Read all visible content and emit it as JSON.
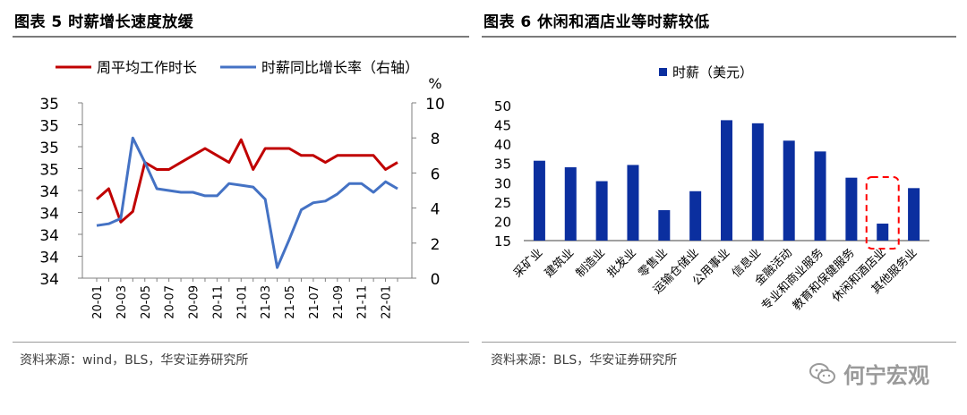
{
  "left_panel": {
    "title": "图表 5 时薪增长速度放缓",
    "source": "资料来源：wind，BLS，华安证券研究所"
  },
  "right_panel": {
    "title": "图表 6  休闲和酒店业等时薪较低",
    "source": "资料来源：BLS，华安证券研究所"
  },
  "watermark": {
    "text": "何宁宏观",
    "icon": "wechat-icon"
  },
  "colors": {
    "red": "#c00000",
    "blue": "#4472c4",
    "navy": "#0b2f9f",
    "dash": "#ff0000"
  },
  "chart_data": [
    {
      "type": "line",
      "title": "图表 5 时薪增长速度放缓",
      "x": [
        "20-01",
        "20-02",
        "20-03",
        "20-04",
        "20-05",
        "20-06",
        "20-07",
        "20-08",
        "20-09",
        "20-10",
        "20-11",
        "20-12",
        "21-01",
        "21-02",
        "21-03",
        "21-04",
        "21-05",
        "21-06",
        "21-07",
        "21-08",
        "21-09",
        "21-10",
        "21-11",
        "21-12",
        "22-01",
        "22-02"
      ],
      "xtick_labels": [
        "20-01",
        "20-03",
        "20-05",
        "20-07",
        "20-09",
        "20-11",
        "21-01",
        "21-03",
        "21-05",
        "21-07",
        "21-09",
        "21-11",
        "22-01"
      ],
      "y_left": {
        "ticks": [
          "35",
          "35",
          "35",
          "35",
          "34",
          "34",
          "34",
          "34",
          "34"
        ],
        "range": [
          34.0,
          35.0
        ]
      },
      "y_right": {
        "ticks": [
          "10",
          "8",
          "6",
          "4",
          "2",
          "0"
        ],
        "unit": "%",
        "range": [
          0,
          10
        ]
      },
      "legend": "top",
      "series": [
        {
          "name": "周平均工作时长",
          "axis": "left",
          "color": "#c00000",
          "values": [
            34.45,
            34.51,
            34.32,
            34.38,
            34.66,
            34.62,
            34.62,
            34.66,
            34.7,
            34.74,
            34.7,
            34.66,
            34.79,
            34.62,
            34.74,
            34.74,
            34.74,
            34.7,
            34.7,
            34.66,
            34.7,
            34.7,
            34.7,
            34.7,
            34.62,
            34.66
          ]
        },
        {
          "name": "时薪同比增长率（右轴）",
          "axis": "right",
          "color": "#4472c4",
          "values": [
            3.0,
            3.1,
            3.4,
            8.0,
            6.6,
            5.1,
            5.0,
            4.9,
            4.9,
            4.7,
            4.7,
            5.4,
            5.3,
            5.2,
            4.5,
            0.6,
            2.2,
            3.9,
            4.3,
            4.4,
            4.8,
            5.4,
            5.4,
            4.9,
            5.5,
            5.1
          ]
        }
      ]
    },
    {
      "type": "bar",
      "title": "图表 6  休闲和酒店业等时薪较低",
      "legend_label": "时薪（美元）",
      "categories": [
        "采矿业",
        "建筑业",
        "制造业",
        "批发业",
        "零售业",
        "运输仓储业",
        "公用事业",
        "信息业",
        "金融活动",
        "专业和商业服务",
        "教育和保健服务",
        "休闲和酒店业",
        "其他服务业"
      ],
      "values": [
        35.7,
        34.0,
        30.4,
        34.6,
        22.9,
        27.8,
        46.2,
        45.4,
        40.9,
        38.1,
        31.3,
        19.4,
        28.6
      ],
      "yticks": [
        15,
        20,
        25,
        30,
        35,
        40,
        45,
        50
      ],
      "ylim": [
        15,
        50
      ],
      "highlight": "休闲和酒店业"
    }
  ]
}
